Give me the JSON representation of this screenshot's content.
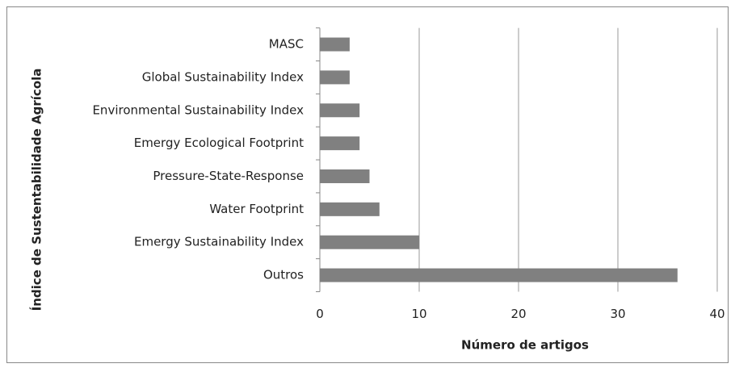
{
  "chart_data": {
    "type": "bar",
    "orientation": "horizontal",
    "xlabel": "Número de artigos",
    "ylabel": "Índice de Sustentabilidade  Agrícola",
    "categories": [
      "MASC",
      "Global Sustainability Index",
      "Environmental Sustainability Index",
      "Emergy Ecological Footprint",
      "Pressure-State-Response",
      "Water Footprint",
      "Emergy Sustainability Index",
      "Outros"
    ],
    "values": [
      3,
      3,
      4,
      4,
      5,
      6,
      10,
      36
    ],
    "color": "#808080",
    "xlim": [
      0,
      40
    ],
    "xticks": [
      0,
      10,
      20,
      30,
      40
    ],
    "grid": true
  }
}
